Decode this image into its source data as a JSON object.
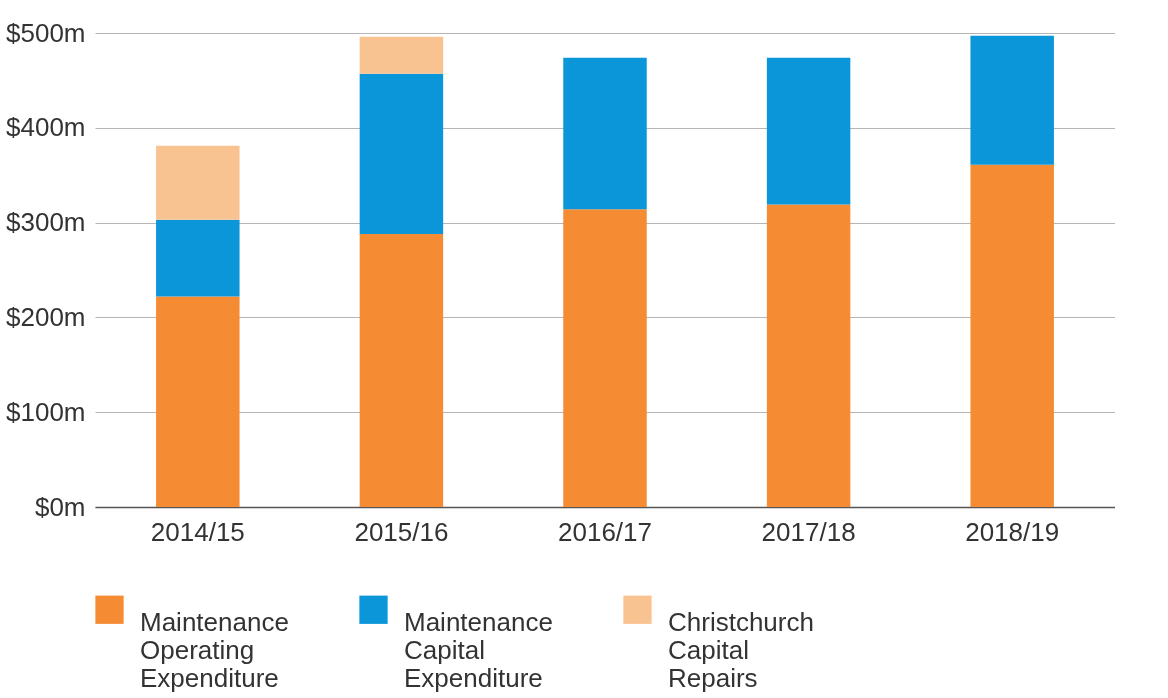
{
  "chart_data": {
    "type": "bar",
    "stacked": true,
    "categories": [
      "2014/15",
      "2015/16",
      "2016/17",
      "2017/18",
      "2018/19"
    ],
    "series": [
      {
        "name": "Maintenance Operating Expenditure",
        "color": "#f58b33",
        "values": [
          222,
          288,
          314,
          319,
          361
        ]
      },
      {
        "name": "Maintenance Capital Expenditure",
        "color": "#0a96d8",
        "values": [
          81,
          169,
          160,
          155,
          136
        ]
      },
      {
        "name": "Christchurch Capital Repairs",
        "color": "#f9c291",
        "values": [
          78,
          39,
          null,
          null,
          null
        ]
      }
    ],
    "ylim": [
      0,
      500
    ],
    "yticks": [
      {
        "value": 0,
        "label": "$0m"
      },
      {
        "value": 100,
        "label": "$100m"
      },
      {
        "value": 200,
        "label": "$200m"
      },
      {
        "value": 300,
        "label": "$300m"
      },
      {
        "value": 400,
        "label": "$400m"
      },
      {
        "value": 500,
        "label": "$500m"
      }
    ],
    "grid": "y",
    "legend": "bottom"
  }
}
